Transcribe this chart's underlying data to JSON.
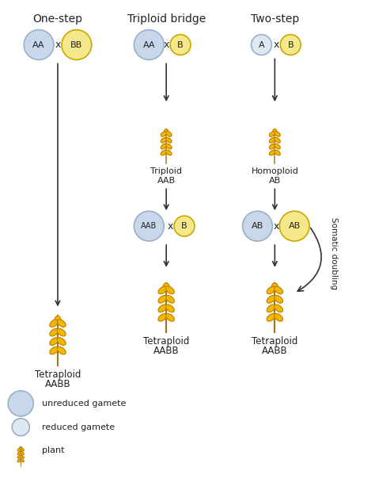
{
  "title_col1": "One-step",
  "title_col2": "Triploid bridge",
  "title_col3": "Two-step",
  "somatic_doubling_label": "Somatic doubling",
  "legend_unreduced": "unreduced gamete",
  "legend_reduced": "reduced gamete",
  "legend_plant": "plant",
  "color_unreduced_fill": "#c8d8ea",
  "color_unreduced_edge": "#9ab0c8",
  "color_reduced_fill": "#dde8f0",
  "color_reduced_edge": "#9ab0c8",
  "color_yellow_fill": "#f5e88a",
  "color_yellow_edge": "#c8a800",
  "color_yellow_reduced_fill": "#f5e88a",
  "color_yellow_reduced_edge": "#c8a800",
  "wheat_fill": "#f0b800",
  "wheat_edge": "#c08000",
  "wheat_stem": "#a07820",
  "arrow_color": "#333333",
  "text_color": "#222222",
  "bg_color": "#ffffff"
}
